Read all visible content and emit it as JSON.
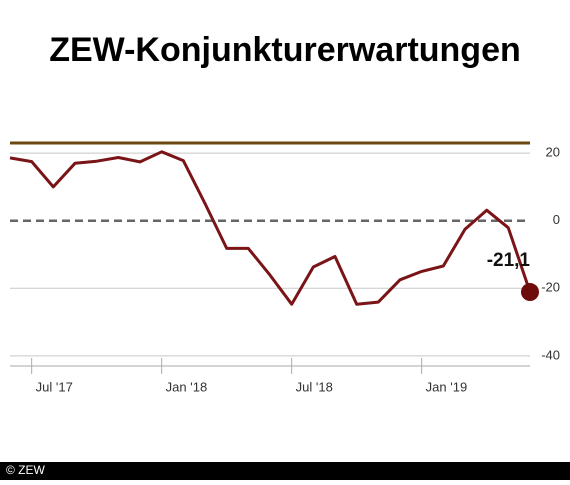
{
  "chart_data": {
    "type": "line",
    "title": "ZEW-Konjunkturerwartungen",
    "categories": [
      null,
      "Jul '17",
      null,
      null,
      null,
      null,
      null,
      "Jan '18",
      null,
      null,
      null,
      null,
      null,
      "Jul '18",
      null,
      null,
      null,
      null,
      null,
      "Jan '19",
      null,
      null,
      null,
      null,
      null
    ],
    "series": [
      {
        "color": "#7a1416",
        "values": [
          18.6,
          17.5,
          10.0,
          17.0,
          17.6,
          18.7,
          17.4,
          20.4,
          17.8,
          5.1,
          -8.2,
          -8.2,
          -16.1,
          -24.7,
          -13.7,
          -10.6,
          -24.7,
          -24.1,
          -17.5,
          -15.0,
          -13.4,
          -2.5,
          3.1,
          -2.1,
          -21.1
        ],
        "value_labels": [
          null,
          null,
          null,
          null,
          null,
          null,
          null,
          null,
          null,
          null,
          null,
          null,
          null,
          null,
          null,
          null,
          null,
          null,
          null,
          null,
          null,
          null,
          null,
          null,
          "-21,1"
        ]
      }
    ],
    "reference_line": {
      "value": 23,
      "color": "#6b4a12"
    },
    "marker_color": "#6e0c0c",
    "ylim": [
      -43,
      23
    ],
    "yticks": [
      20,
      0,
      -20,
      -40
    ],
    "grid": true,
    "source": "© ZEW"
  }
}
